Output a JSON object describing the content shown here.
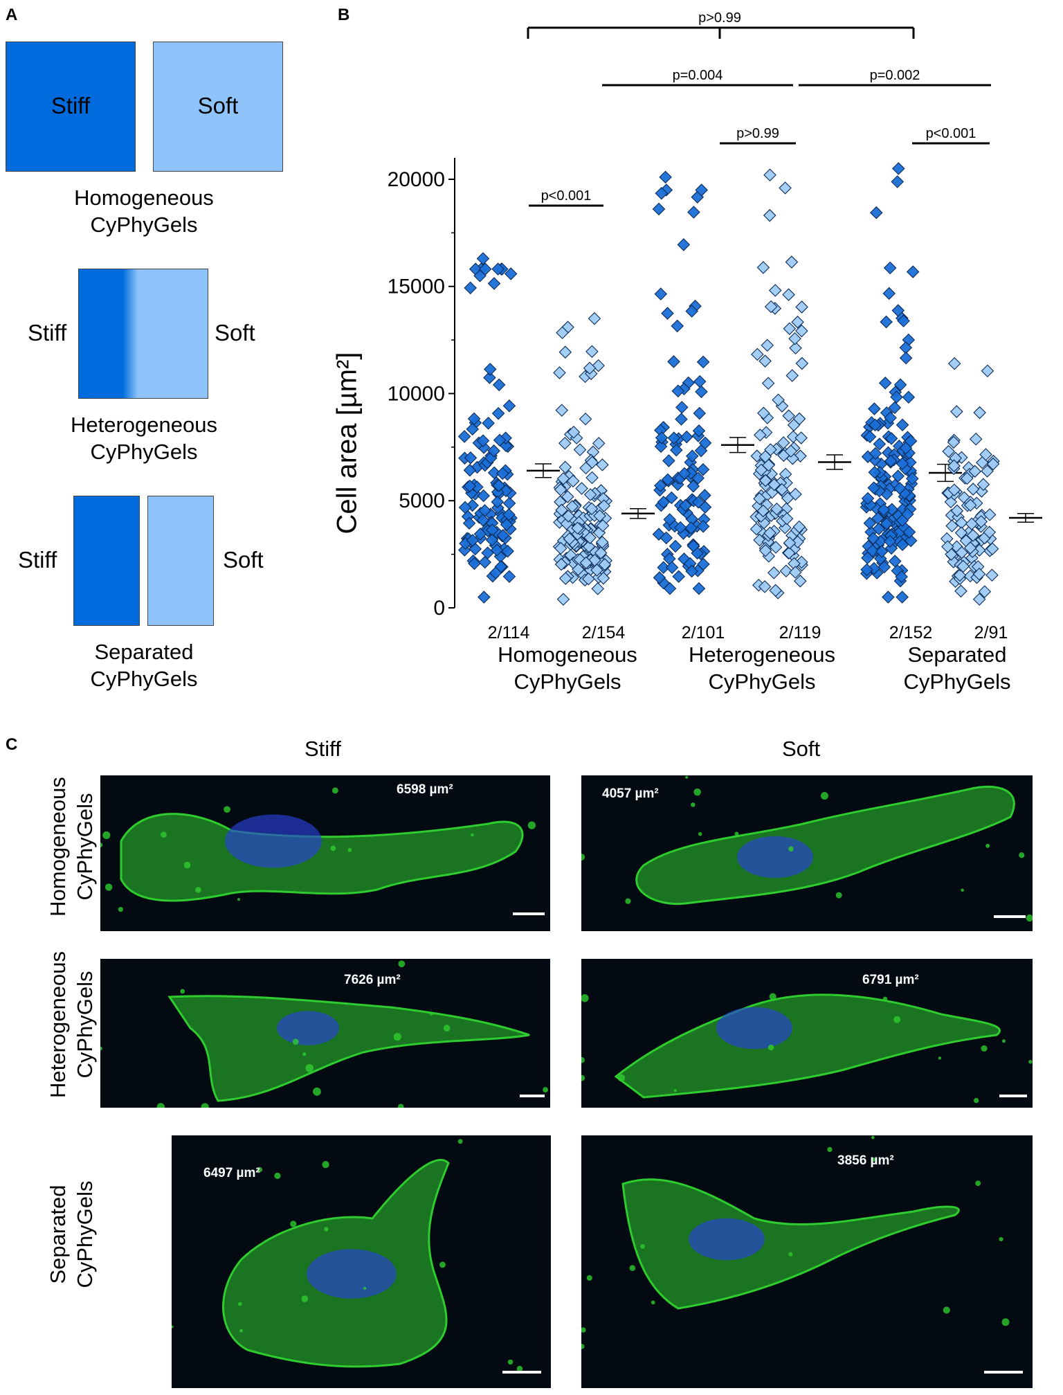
{
  "panel_a": {
    "letter": "A",
    "homogeneous": {
      "stiff": "Stiff",
      "soft": "Soft",
      "caption": [
        "Homogeneous",
        "CyPhyGels"
      ]
    },
    "heterogeneous": {
      "stiff": "Stiff",
      "soft": "Soft",
      "caption": [
        "Heterogeneous",
        "CyPhyGels"
      ]
    },
    "separated": {
      "stiff": "Stiff",
      "soft": "Soft",
      "caption": [
        "Separated",
        "CyPhyGels"
      ]
    },
    "colors": {
      "stiff": "#006bdc",
      "soft": "#8fc3fb"
    }
  },
  "panel_b": {
    "letter": "B",
    "chart_data": {
      "type": "scatter",
      "ylabel": "Cell area [µm²]",
      "ylim": [
        0,
        21000
      ],
      "yticks": [
        "0",
        "5000",
        "10000",
        "15000",
        "20000"
      ],
      "group_labels": [
        [
          "Homogeneous",
          "CyPhyGels"
        ],
        [
          "Heterogeneous",
          "CyPhyGels"
        ],
        [
          "Separated",
          "CyPhyGels"
        ]
      ],
      "series": [
        {
          "label": "2/114",
          "n": 114,
          "stiffness": "stiff",
          "mean": 6400,
          "sem": 320,
          "max": 16300,
          "min": 500
        },
        {
          "label": "2/154",
          "n": 154,
          "stiffness": "soft",
          "mean": 4400,
          "sem": 230,
          "max": 13500,
          "min": 400
        },
        {
          "label": "2/101",
          "n": 101,
          "stiffness": "stiff",
          "mean": 7600,
          "sem": 350,
          "max": 20100,
          "min": 900
        },
        {
          "label": "2/119",
          "n": 119,
          "stiffness": "soft",
          "mean": 6800,
          "sem": 340,
          "max": 20200,
          "min": 700
        },
        {
          "label": "2/152",
          "n": 152,
          "stiffness": "stiff",
          "mean": 6300,
          "sem": 400,
          "max": 20500,
          "min": 500
        },
        {
          "label": "2/91",
          "n": 91,
          "stiffness": "soft",
          "mean": 4200,
          "sem": 200,
          "max": 11400,
          "min": 400
        }
      ],
      "comparisons": [
        {
          "from": 0,
          "to": 1,
          "label": "p<0.001"
        },
        {
          "from": 2,
          "to": 3,
          "label": "p>0.99"
        },
        {
          "from": 4,
          "to": 5,
          "label": "p<0.001"
        },
        {
          "from": 1,
          "to": 3,
          "label": "p=0.004"
        },
        {
          "from": 3,
          "to": 5,
          "label": "p=0.002"
        },
        {
          "from": 0,
          "to": 4,
          "label": "p>0.99"
        }
      ],
      "colors": {
        "stiff": "#1a6fd8",
        "soft": "#9ecbf7",
        "edge": "#0a2a55"
      }
    }
  },
  "panel_c": {
    "letter": "C",
    "col_headers": [
      "Stiff",
      "Soft"
    ],
    "row_labels": [
      [
        "Homogeneous",
        "CyPhyGels"
      ],
      [
        "Heterogeneous",
        "CyPhyGels"
      ],
      [
        "Separated",
        "CyPhyGels"
      ]
    ],
    "images": [
      {
        "area": "6598 µm²"
      },
      {
        "area": "4057 µm²"
      },
      {
        "area": "7626 µm²"
      },
      {
        "area": "6791 µm²"
      },
      {
        "area": "6497 µm²"
      },
      {
        "area": "3856 µm²"
      }
    ],
    "colors": {
      "actin": "#2ecc2e",
      "nucleus": "#2840d8"
    }
  }
}
